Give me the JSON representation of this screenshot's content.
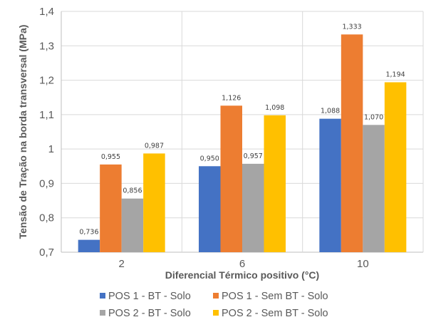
{
  "chart_data": {
    "type": "bar",
    "title": "",
    "xlabel": "Diferencial Térmico positivo (°C)",
    "ylabel": "Tensão de Tração na borda transversal (MPa)",
    "categories": [
      "2",
      "6",
      "10"
    ],
    "ylim": [
      0.7,
      1.4
    ],
    "yticks": [
      0.7,
      0.8,
      0.9,
      1.0,
      1.1,
      1.2,
      1.3,
      1.4
    ],
    "ytick_labels": [
      "0,7",
      "0,8",
      "0,9",
      "1",
      "1,1",
      "1,2",
      "1,3",
      "1,4"
    ],
    "grid": true,
    "legend_position": "bottom",
    "series": [
      {
        "name": "POS 1 - BT - Solo",
        "color": "#4472C4",
        "values": [
          0.736,
          0.95,
          1.088
        ],
        "labels": [
          "0,736",
          "0,950",
          "1,088"
        ]
      },
      {
        "name": "POS 1 - Sem BT - Solo",
        "color": "#ED7D31",
        "values": [
          0.955,
          1.126,
          1.333
        ],
        "labels": [
          "0,955",
          "1,126",
          "1,333"
        ]
      },
      {
        "name": "POS 2 - BT - Solo",
        "color": "#A5A5A5",
        "values": [
          0.856,
          0.957,
          1.07
        ],
        "labels": [
          "0,856",
          "0,957",
          "1,070"
        ]
      },
      {
        "name": "POS 2 - Sem BT - Solo",
        "color": "#FFC000",
        "values": [
          0.987,
          1.098,
          1.194
        ],
        "labels": [
          "0,987",
          "1,098",
          "1,194"
        ]
      }
    ]
  }
}
